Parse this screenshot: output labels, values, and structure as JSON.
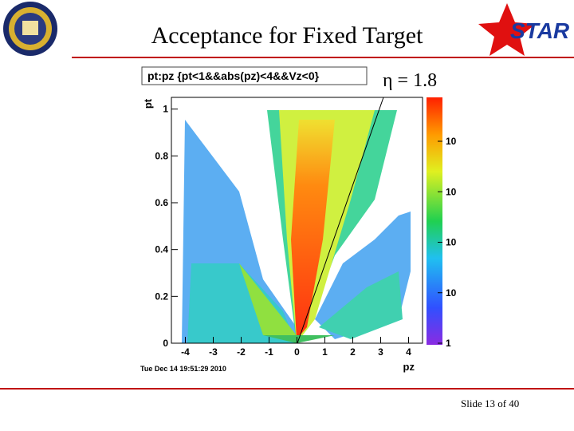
{
  "header": {
    "title": "Acceptance for Fixed Target",
    "annotation": "η = 1.8"
  },
  "plot": {
    "title": "pt:pz {pt<1&&abs(pz)<4&&Vz<0}",
    "x_label": "pz",
    "y_label": "pt",
    "xlim": [
      -4.5,
      4.5
    ],
    "ylim": [
      0,
      1.05
    ],
    "xticks": [
      -4,
      -3,
      -2,
      -1,
      0,
      1,
      2,
      3,
      4
    ],
    "yticks": [
      0,
      0.2,
      0.4,
      0.6,
      0.8,
      1
    ],
    "colorbar_labels": [
      "10",
      "10",
      "10",
      "10",
      "1"
    ],
    "timestamp": "Tue Dec 14 19:51:29 2010"
  },
  "footer": {
    "slide_number": "Slide 13 of 40"
  }
}
